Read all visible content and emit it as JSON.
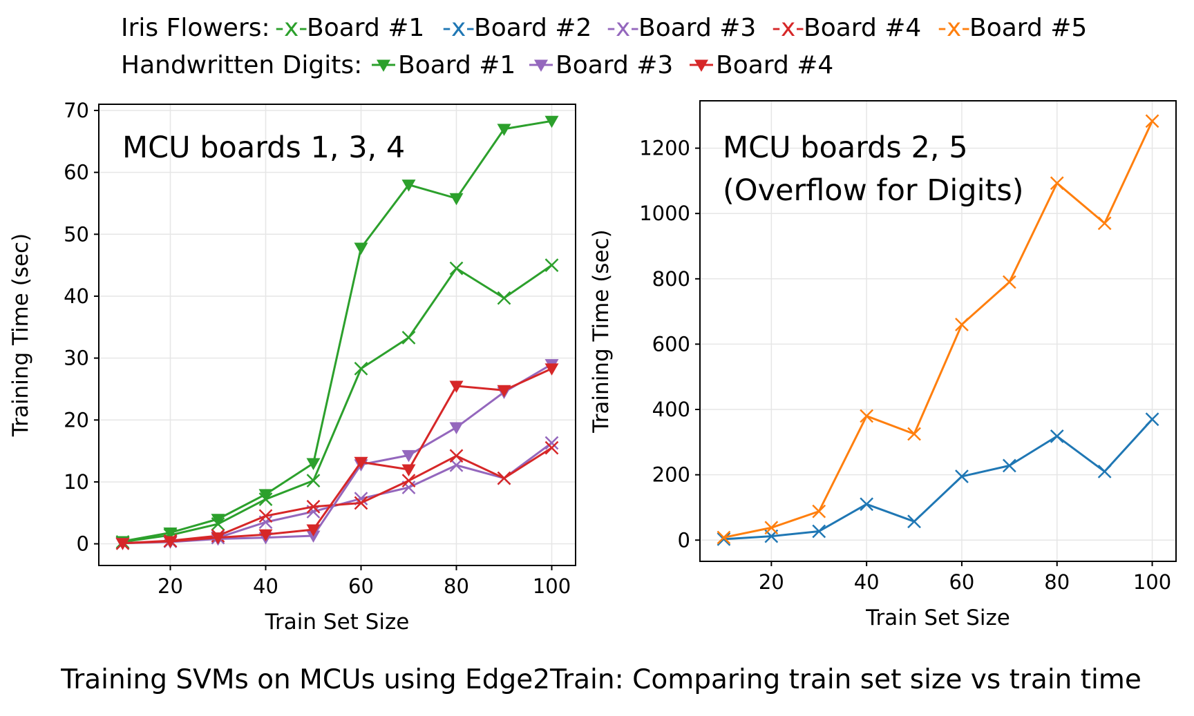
{
  "legend": {
    "row1_label": "Iris Flowers:",
    "row2_label": "Handwritten Digits:",
    "row1_items": [
      {
        "label": "-x-Board #1",
        "color": "#2ca02c"
      },
      {
        "label": "-x-Board #2",
        "color": "#1f77b4"
      },
      {
        "label": "-x-Board #3",
        "color": "#9467bd"
      },
      {
        "label": "-x-Board #4",
        "color": "#d62728"
      },
      {
        "label": "-x-Board #5",
        "color": "#ff7f0e"
      }
    ],
    "row2_items": [
      {
        "label": "Board #1",
        "color": "#2ca02c"
      },
      {
        "label": "Board #3",
        "color": "#9467bd"
      },
      {
        "label": "Board #4",
        "color": "#d62728"
      }
    ]
  },
  "caption": "Training SVMs on MCUs using Edge2Train: Comparing train set size vs train time",
  "chart_data": [
    {
      "type": "line",
      "note_lines": [
        "MCU boards 1, 3, 4"
      ],
      "xlabel": "Train Set Size",
      "ylabel": "Training Time (sec)",
      "xlim": [
        5,
        105
      ],
      "ylim": [
        -3.5,
        71
      ],
      "xticks": [
        20,
        40,
        60,
        80,
        100
      ],
      "yticks": [
        0,
        10,
        20,
        30,
        40,
        50,
        60,
        70
      ],
      "grid": true,
      "x": [
        10,
        20,
        30,
        40,
        50,
        60,
        70,
        80,
        90,
        100
      ],
      "series": [
        {
          "dataset": "Iris Flowers",
          "board": "Board #1",
          "marker": "x",
          "color": "#2ca02c",
          "values": [
            0.3,
            1.4,
            3.2,
            7.2,
            10.2,
            28.3,
            33.3,
            44.5,
            39.7,
            45.0
          ]
        },
        {
          "dataset": "Iris Flowers",
          "board": "Board #3",
          "marker": "x",
          "color": "#9467bd",
          "values": [
            0.1,
            0.4,
            1.0,
            3.5,
            5.2,
            7.3,
            9.1,
            12.7,
            10.6,
            16.3
          ]
        },
        {
          "dataset": "Iris Flowers",
          "board": "Board #4",
          "marker": "x",
          "color": "#d62728",
          "values": [
            0.1,
            0.5,
            1.3,
            4.5,
            6.0,
            6.6,
            10.2,
            14.2,
            10.6,
            15.5
          ]
        },
        {
          "dataset": "Handwritten Digits",
          "board": "Board #1",
          "marker": "v",
          "color": "#2ca02c",
          "values": [
            0.4,
            1.8,
            4.0,
            8.0,
            13.0,
            47.8,
            58.0,
            55.8,
            67.0,
            68.3
          ]
        },
        {
          "dataset": "Handwritten Digits",
          "board": "Board #3",
          "marker": "v",
          "color": "#9467bd",
          "values": [
            0.1,
            0.3,
            0.8,
            1.0,
            1.3,
            12.8,
            14.3,
            18.8,
            24.5,
            29.0
          ]
        },
        {
          "dataset": "Handwritten Digits",
          "board": "Board #4",
          "marker": "v",
          "color": "#d62728",
          "values": [
            0.1,
            0.4,
            1.0,
            1.5,
            2.3,
            13.2,
            12.0,
            25.5,
            24.8,
            28.3
          ]
        }
      ]
    },
    {
      "type": "line",
      "note_lines": [
        "MCU boards 2, 5",
        "(Overflow for Digits)"
      ],
      "xlabel": "Train Set Size",
      "ylabel": "Training Time (sec)",
      "xlim": [
        5,
        105
      ],
      "ylim": [
        -65,
        1345
      ],
      "xticks": [
        20,
        40,
        60,
        80,
        100
      ],
      "yticks": [
        0,
        200,
        400,
        600,
        800,
        1000,
        1200
      ],
      "grid": true,
      "x": [
        10,
        20,
        30,
        40,
        50,
        60,
        70,
        80,
        90,
        100
      ],
      "series": [
        {
          "dataset": "Iris Flowers",
          "board": "Board #2",
          "marker": "x",
          "color": "#1f77b4",
          "values": [
            3,
            12,
            27,
            110,
            57,
            195,
            228,
            318,
            210,
            370
          ]
        },
        {
          "dataset": "Iris Flowers",
          "board": "Board #5",
          "marker": "x",
          "color": "#ff7f0e",
          "values": [
            8,
            38,
            88,
            380,
            325,
            660,
            790,
            1093,
            970,
            1283
          ]
        }
      ]
    }
  ]
}
